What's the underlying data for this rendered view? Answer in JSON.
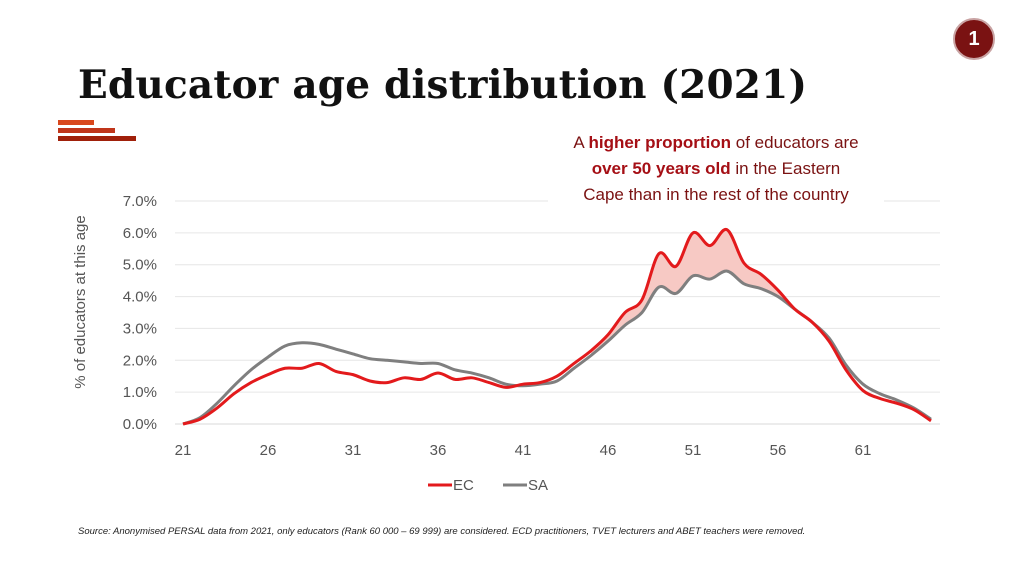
{
  "page_number": "1",
  "title": "Educator age distribution (2021)",
  "callout": {
    "prefix": "A ",
    "bold1": "higher proportion",
    "mid1": " of educators are",
    "bold2": "over 50 years old",
    "mid2": " in the Eastern",
    "line3": "Cape than in the rest of the country"
  },
  "source": "Source: Anonymised PERSAL data from 2021, only educators (Rank 60 000 – 69 999) are considered. ECD practitioners, TVET lecturers and ABET teachers were removed.",
  "colors": {
    "ec": "#e31a1c",
    "sa": "#7f7f7f",
    "fill": "#f7c9c4",
    "accent": "#7a1212",
    "bar_dark": "#a0200a",
    "bar_light": "#d9471c"
  },
  "chart_data": {
    "type": "line",
    "title": "",
    "xlabel": "",
    "ylabel": "% of educators at this age",
    "x_ticks": [
      "21",
      "26",
      "31",
      "36",
      "41",
      "46",
      "51",
      "56",
      "61"
    ],
    "y_ticks": [
      "0.0%",
      "1.0%",
      "2.0%",
      "3.0%",
      "4.0%",
      "5.0%",
      "6.0%",
      "7.0%"
    ],
    "ylim": [
      0,
      7
    ],
    "xlim": [
      21,
      65
    ],
    "legend": [
      "EC",
      "SA"
    ],
    "legend_position": "bottom",
    "grid": true,
    "shaded_between": "EC above SA",
    "x": [
      21,
      22,
      23,
      24,
      25,
      26,
      27,
      28,
      29,
      30,
      31,
      32,
      33,
      34,
      35,
      36,
      37,
      38,
      39,
      40,
      41,
      42,
      43,
      44,
      45,
      46,
      47,
      48,
      49,
      50,
      51,
      52,
      53,
      54,
      55,
      56,
      57,
      58,
      59,
      60,
      61,
      62,
      63,
      64,
      65
    ],
    "series": [
      {
        "name": "EC",
        "values": [
          0.0,
          0.15,
          0.5,
          0.95,
          1.3,
          1.55,
          1.75,
          1.75,
          1.9,
          1.65,
          1.55,
          1.35,
          1.3,
          1.45,
          1.4,
          1.6,
          1.4,
          1.45,
          1.3,
          1.15,
          1.25,
          1.3,
          1.5,
          1.9,
          2.3,
          2.8,
          3.5,
          3.9,
          5.35,
          4.95,
          6.0,
          5.6,
          6.1,
          5.05,
          4.7,
          4.2,
          3.6,
          3.2,
          2.6,
          1.7,
          1.05,
          0.8,
          0.65,
          0.45,
          0.1
        ]
      },
      {
        "name": "SA",
        "values": [
          0.0,
          0.2,
          0.65,
          1.2,
          1.7,
          2.1,
          2.45,
          2.55,
          2.5,
          2.35,
          2.2,
          2.05,
          2.0,
          1.95,
          1.9,
          1.9,
          1.7,
          1.6,
          1.45,
          1.25,
          1.2,
          1.25,
          1.35,
          1.75,
          2.15,
          2.6,
          3.1,
          3.5,
          4.3,
          4.1,
          4.65,
          4.55,
          4.8,
          4.4,
          4.25,
          4.0,
          3.6,
          3.2,
          2.7,
          1.85,
          1.25,
          0.95,
          0.75,
          0.5,
          0.15
        ]
      }
    ]
  }
}
